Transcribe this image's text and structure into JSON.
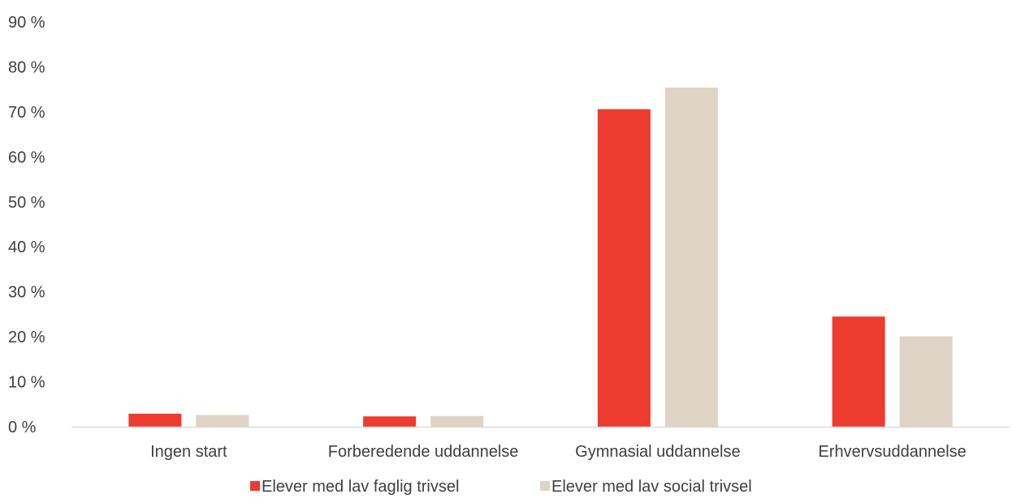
{
  "chart_data": {
    "type": "bar",
    "categories": [
      "Ingen start",
      "Forberedende uddannelse",
      "Gymnasial uddannelse",
      "Erhvervsuddannelse"
    ],
    "series": [
      {
        "name": "Elever med lav faglig trivsel",
        "values": [
          2.9,
          2.3,
          70.6,
          24.5
        ]
      },
      {
        "name": "Elever med lav social trivsel",
        "values": [
          2.6,
          2.4,
          75.4,
          20.1
        ]
      }
    ],
    "ylim": [
      0,
      90
    ],
    "yticks": [
      0,
      10,
      20,
      30,
      40,
      50,
      60,
      70,
      80,
      90
    ],
    "ytick_labels": [
      "0 %",
      "10 %",
      "20 %",
      "30 %",
      "40 %",
      "50 %",
      "60 %",
      "70 %",
      "80 %",
      "90 %"
    ],
    "title": "",
    "xlabel": "",
    "ylabel": "",
    "grid": false,
    "legend_position": "bottom",
    "colors": [
      "#ee3b2f",
      "#ded3c4"
    ],
    "axis_color": "#d9d9d9",
    "text_color": "#404040"
  }
}
